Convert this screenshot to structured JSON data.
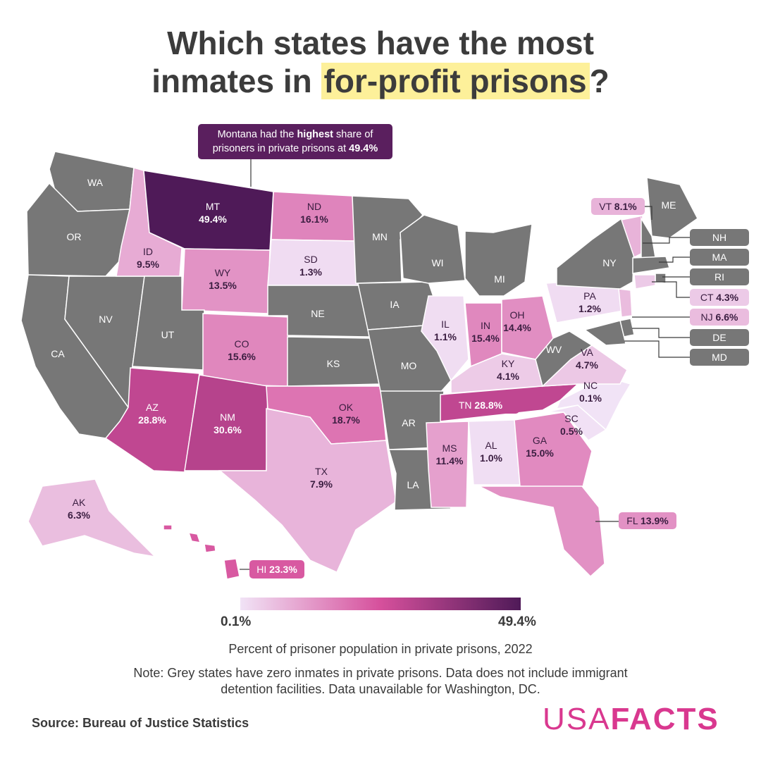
{
  "title": {
    "line1": "Which states have the most",
    "line2_prefix": "inmates in ",
    "line2_highlight": "for-profit prisons",
    "line2_suffix": "?"
  },
  "callout": {
    "part1": "Montana had the ",
    "bold": "highest",
    "part2": " share of",
    "line2": "prisoners in private prisons at ",
    "value": "49.4%"
  },
  "legend": {
    "min": "0.1%",
    "max": "49.4%",
    "color_min": "#f1e3f6",
    "color_mid": "#d6509c",
    "color_max": "#4f1a58"
  },
  "caption": "Percent of prisoner population in private prisons, 2022",
  "note": "Note: Grey states have zero inmates in private prisons. Data does not include immigrant detention facilities. Data unavailable for Washington, DC.",
  "source": "Source: Bureau of Justice Statistics",
  "brand": {
    "part1": "USA",
    "part2": "FACTS"
  },
  "colors": {
    "zero": "#777777",
    "border": "#ffffff"
  },
  "states": [
    {
      "abbr": "WA",
      "value": null
    },
    {
      "abbr": "OR",
      "value": null
    },
    {
      "abbr": "CA",
      "value": null
    },
    {
      "abbr": "NV",
      "value": null
    },
    {
      "abbr": "ID",
      "value": 9.5,
      "label": "9.5%"
    },
    {
      "abbr": "MT",
      "value": 49.4,
      "label": "49.4%"
    },
    {
      "abbr": "WY",
      "value": 13.5,
      "label": "13.5%"
    },
    {
      "abbr": "UT",
      "value": null
    },
    {
      "abbr": "AZ",
      "value": 28.8,
      "label": "28.8%"
    },
    {
      "abbr": "CO",
      "value": 15.6,
      "label": "15.6%"
    },
    {
      "abbr": "NM",
      "value": 30.6,
      "label": "30.6%"
    },
    {
      "abbr": "ND",
      "value": 16.1,
      "label": "16.1%"
    },
    {
      "abbr": "SD",
      "value": 1.3,
      "label": "1.3%"
    },
    {
      "abbr": "NE",
      "value": null
    },
    {
      "abbr": "KS",
      "value": null
    },
    {
      "abbr": "OK",
      "value": 18.7,
      "label": "18.7%"
    },
    {
      "abbr": "TX",
      "value": 7.9,
      "label": "7.9%"
    },
    {
      "abbr": "MN",
      "value": null
    },
    {
      "abbr": "IA",
      "value": null
    },
    {
      "abbr": "MO",
      "value": null
    },
    {
      "abbr": "AR",
      "value": null
    },
    {
      "abbr": "LA",
      "value": null
    },
    {
      "abbr": "WI",
      "value": null
    },
    {
      "abbr": "IL",
      "value": 1.1,
      "label": "1.1%"
    },
    {
      "abbr": "MI",
      "value": null
    },
    {
      "abbr": "IN",
      "value": 15.4,
      "label": "15.4%"
    },
    {
      "abbr": "OH",
      "value": 14.4,
      "label": "14.4%"
    },
    {
      "abbr": "KY",
      "value": 4.1,
      "label": "4.1%"
    },
    {
      "abbr": "TN",
      "value": 28.8,
      "label": "28.8%"
    },
    {
      "abbr": "MS",
      "value": 11.4,
      "label": "11.4%"
    },
    {
      "abbr": "AL",
      "value": 1.0,
      "label": "1.0%"
    },
    {
      "abbr": "GA",
      "value": 15.0,
      "label": "15.0%"
    },
    {
      "abbr": "FL",
      "value": 13.9,
      "label": "13.9%"
    },
    {
      "abbr": "SC",
      "value": 0.5,
      "label": "0.5%"
    },
    {
      "abbr": "NC",
      "value": 0.1,
      "label": "0.1%"
    },
    {
      "abbr": "VA",
      "value": 4.7,
      "label": "4.7%"
    },
    {
      "abbr": "WV",
      "value": null
    },
    {
      "abbr": "PA",
      "value": 1.2,
      "label": "1.2%"
    },
    {
      "abbr": "NY",
      "value": null
    },
    {
      "abbr": "VT",
      "value": 8.1,
      "label": "8.1%"
    },
    {
      "abbr": "ME",
      "value": null
    },
    {
      "abbr": "NH",
      "value": null
    },
    {
      "abbr": "MA",
      "value": null
    },
    {
      "abbr": "RI",
      "value": null
    },
    {
      "abbr": "CT",
      "value": 4.3,
      "label": "4.3%"
    },
    {
      "abbr": "NJ",
      "value": 6.6,
      "label": "6.6%"
    },
    {
      "abbr": "DE",
      "value": null
    },
    {
      "abbr": "MD",
      "value": null
    },
    {
      "abbr": "AK",
      "value": 6.3,
      "label": "6.3%"
    },
    {
      "abbr": "HI",
      "value": 23.3,
      "label": "23.3%"
    }
  ]
}
